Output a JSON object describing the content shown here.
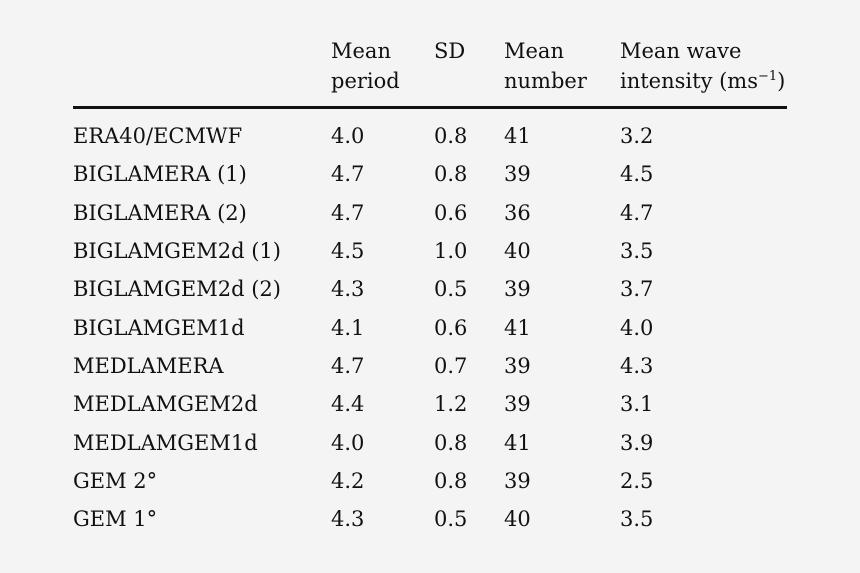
{
  "table": {
    "headers": [
      {
        "line1": "",
        "line2": ""
      },
      {
        "line1": "Mean",
        "line2": "period"
      },
      {
        "line1": "SD",
        "line2": ""
      },
      {
        "line1": "Mean",
        "line2": "number"
      },
      {
        "line1": "Mean wave",
        "line2": "intensity (ms",
        "sup": "−1",
        "suffix": ")"
      }
    ],
    "rows": [
      [
        "ERA40/ECMWF",
        "4.0",
        "0.8",
        "41",
        "3.2"
      ],
      [
        "BIGLAMERA (1)",
        "4.7",
        "0.8",
        "39",
        "4.5"
      ],
      [
        "BIGLAMERA (2)",
        "4.7",
        "0.6",
        "36",
        "4.7"
      ],
      [
        "BIGLAMGEM2d (1)",
        "4.5",
        "1.0",
        "40",
        "3.5"
      ],
      [
        "BIGLAMGEM2d (2)",
        "4.3",
        "0.5",
        "39",
        "3.7"
      ],
      [
        "BIGLAMGEM1d",
        "4.1",
        "0.6",
        "41",
        "4.0"
      ],
      [
        "MEDLAMERA",
        "4.7",
        "0.7",
        "39",
        "4.3"
      ],
      [
        "MEDLAMGEM2d",
        "4.4",
        "1.2",
        "39",
        "3.1"
      ],
      [
        "MEDLAMGEM1d",
        "4.0",
        "0.8",
        "41",
        "3.9"
      ],
      [
        "GEM 2°",
        "4.2",
        "0.8",
        "39",
        "2.5"
      ],
      [
        "GEM 1°",
        "4.3",
        "0.5",
        "40",
        "3.5"
      ]
    ]
  }
}
